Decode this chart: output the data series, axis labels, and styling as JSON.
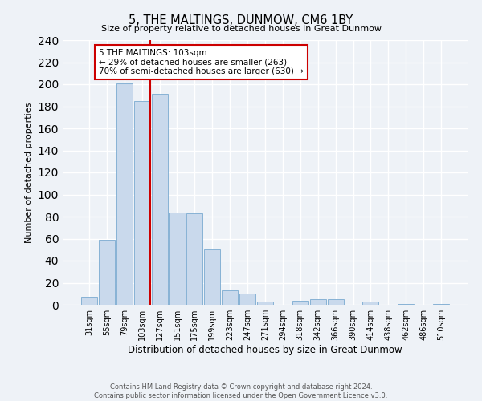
{
  "title": "5, THE MALTINGS, DUNMOW, CM6 1BY",
  "subtitle": "Size of property relative to detached houses in Great Dunmow",
  "xlabel": "Distribution of detached houses by size in Great Dunmow",
  "ylabel": "Number of detached properties",
  "bin_labels": [
    "31sqm",
    "55sqm",
    "79sqm",
    "103sqm",
    "127sqm",
    "151sqm",
    "175sqm",
    "199sqm",
    "223sqm",
    "247sqm",
    "271sqm",
    "294sqm",
    "318sqm",
    "342sqm",
    "366sqm",
    "390sqm",
    "414sqm",
    "438sqm",
    "462sqm",
    "486sqm",
    "510sqm"
  ],
  "bar_values": [
    7,
    59,
    201,
    185,
    191,
    84,
    83,
    50,
    13,
    10,
    3,
    0,
    4,
    5,
    5,
    0,
    3,
    0,
    1,
    0,
    1
  ],
  "bar_color": "#c9d9ec",
  "bar_edge_color": "#7aaad0",
  "vline_x_index": 3,
  "vline_color": "#cc0000",
  "ylim": [
    0,
    240
  ],
  "yticks": [
    0,
    20,
    40,
    60,
    80,
    100,
    120,
    140,
    160,
    180,
    200,
    220,
    240
  ],
  "annotation_title": "5 THE MALTINGS: 103sqm",
  "annotation_line1": "← 29% of detached houses are smaller (263)",
  "annotation_line2": "70% of semi-detached houses are larger (630) →",
  "annotation_box_color": "#ffffff",
  "annotation_box_edge": "#cc0000",
  "footer_line1": "Contains HM Land Registry data © Crown copyright and database right 2024.",
  "footer_line2": "Contains public sector information licensed under the Open Government Licence v3.0.",
  "bg_color": "#eef2f7",
  "grid_color": "#ffffff"
}
